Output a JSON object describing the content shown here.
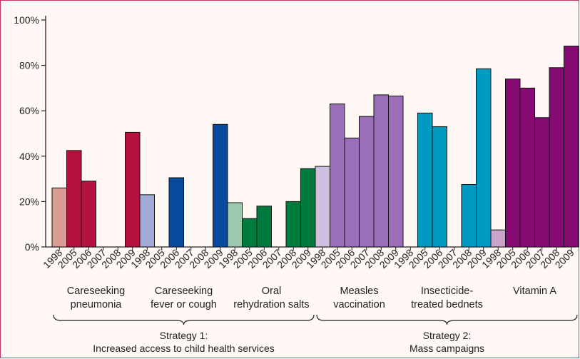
{
  "chart_data": {
    "type": "bar",
    "ylim": [
      0,
      100
    ],
    "yticks": [
      "0%",
      "20%",
      "40%",
      "60%",
      "80%",
      "100%"
    ],
    "ytick_values": [
      0,
      20,
      40,
      60,
      80,
      100
    ],
    "years": [
      "1998",
      "2005",
      "2006",
      "2007",
      "2008",
      "2009"
    ],
    "groups": [
      {
        "label": [
          "Careseeking",
          "pneumonia"
        ],
        "values": [
          26,
          42.5,
          29,
          null,
          null,
          50.5
        ],
        "colors": [
          "#d99c97",
          "#b5123f",
          "#b5123f",
          "#b5123f",
          "#b5123f",
          "#b5123f"
        ]
      },
      {
        "label": [
          "Careseeking",
          "fever or cough"
        ],
        "values": [
          23,
          null,
          30.5,
          null,
          null,
          54
        ],
        "colors": [
          "#a3acd8",
          "#0a4a9e",
          "#0a4a9e",
          "#0a4a9e",
          "#0a4a9e",
          "#0a4a9e"
        ]
      },
      {
        "label": [
          "Oral",
          "rehydration salts"
        ],
        "values": [
          19.5,
          12.5,
          18,
          null,
          20,
          34.5
        ],
        "colors": [
          "#9ec8ad",
          "#007a3d",
          "#007a3d",
          "#007a3d",
          "#007a3d",
          "#007a3d"
        ]
      },
      {
        "label": [
          "Measles",
          "vaccination"
        ],
        "values": [
          35.5,
          63,
          48,
          57.5,
          67,
          66.5
        ],
        "colors": [
          "#cfc0e0",
          "#9a6fb8",
          "#9a6fb8",
          "#9a6fb8",
          "#9a6fb8",
          "#9a6fb8"
        ]
      },
      {
        "label": [
          "Insecticide-",
          "treated bednets"
        ],
        "values": [
          null,
          59,
          53,
          null,
          27.5,
          78.5
        ],
        "colors": [
          "#8fd3e3",
          "#0099c0",
          "#0099c0",
          "#0099c0",
          "#0099c0",
          "#0099c0"
        ]
      },
      {
        "label": [
          "Vitamin A"
        ],
        "values": [
          7.5,
          74,
          70,
          57,
          79,
          88.5
        ],
        "colors": [
          "#c9a3c9",
          "#850a72",
          "#850a72",
          "#850a72",
          "#850a72",
          "#850a72"
        ]
      }
    ],
    "strategies": [
      {
        "lines": [
          "Strategy 1:",
          "Increased access to child health services"
        ],
        "from_group": 0,
        "to_group": 2
      },
      {
        "lines": [
          "Strategy 2:",
          "Mass campaigns"
        ],
        "from_group": 3,
        "to_group": 5
      }
    ]
  }
}
